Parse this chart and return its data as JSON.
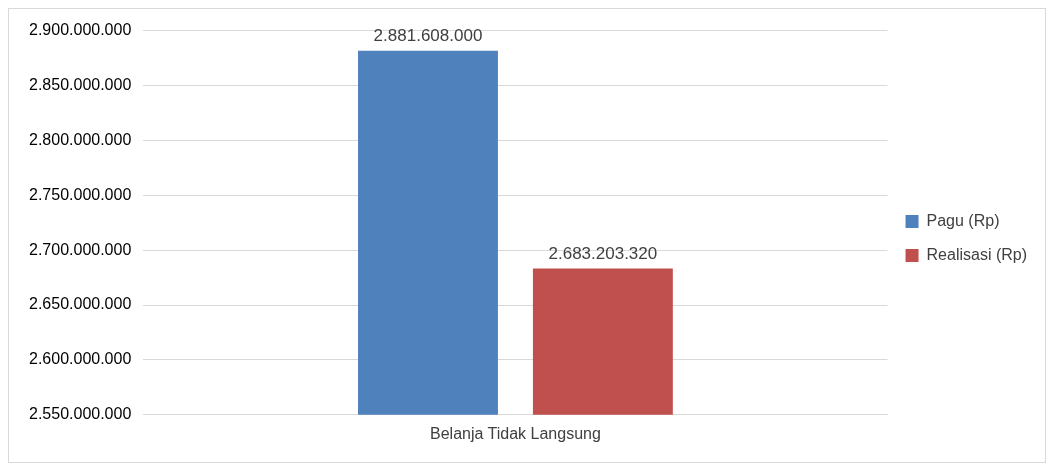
{
  "chart_data": {
    "type": "bar",
    "categories": [
      "Belanja Tidak Langsung"
    ],
    "series": [
      {
        "name": "Pagu (Rp)",
        "color": "#4f81bd",
        "values": [
          2881608000
        ],
        "value_labels": [
          "2.881.608.000"
        ]
      },
      {
        "name": "Realisasi (Rp)",
        "color": "#c0504d",
        "values": [
          2683203320
        ],
        "value_labels": [
          "2.683.203.320"
        ]
      }
    ],
    "ylim": [
      2550000000,
      2900000000
    ],
    "yticks": [
      {
        "value": 2550000000,
        "label": "2.550.000.000"
      },
      {
        "value": 2600000000,
        "label": "2.600.000.000"
      },
      {
        "value": 2650000000,
        "label": "2.650.000.000"
      },
      {
        "value": 2700000000,
        "label": "2.700.000.000"
      },
      {
        "value": 2750000000,
        "label": "2.750.000.000"
      },
      {
        "value": 2800000000,
        "label": "2.800.000.000"
      },
      {
        "value": 2850000000,
        "label": "2.850.000.000"
      },
      {
        "value": 2900000000,
        "label": "2.900.000.000"
      }
    ],
    "grid": "y",
    "legend": "right"
  }
}
